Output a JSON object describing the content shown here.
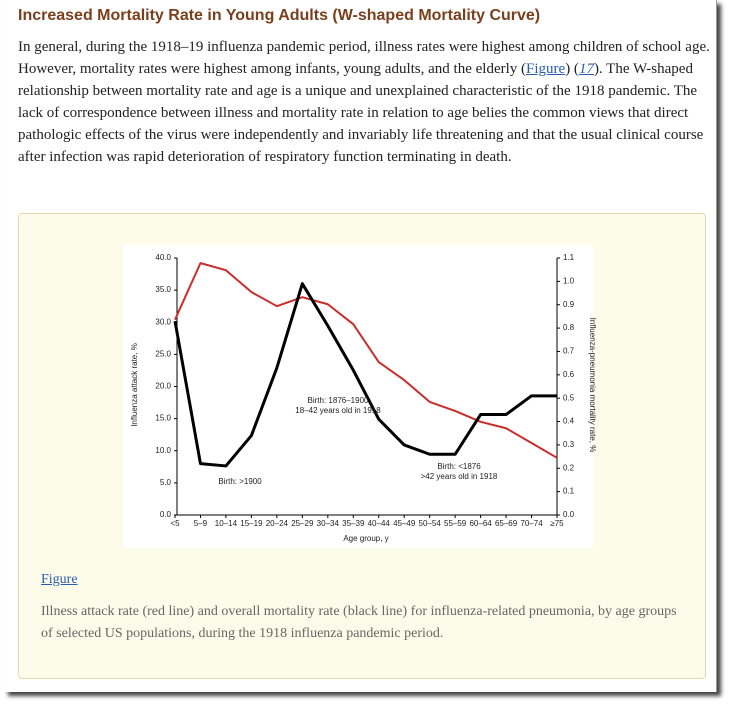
{
  "header": {
    "title": "Increased Mortality Rate in Young Adults (W-shaped Mortality Curve)"
  },
  "paragraph": [
    "In general, during the 1918–19 influenza pandemic period, illness rates were highest among children of school age. However, mortality rates were highest among infants, young adults, and the elderly (",
    "Figure",
    ") (",
    "17",
    "). The W-shaped relationship between mortality rate and age is a unique and unexplained characteristic of the 1918 pandemic. The lack of correspondence between illness and mortality rate in relation to age belies the common views that direct pathologic effects of the virus were independently and invariably life threatening and that the usual clinical course after infection was rapid deterioration of respiratory function terminating in death."
  ],
  "chart_data": {
    "type": "line",
    "x_label": "Age group, y",
    "y_label": "Influenza attack rate, %",
    "y2_label": "Influenza-pneumonia mortality rate, %",
    "categories": [
      "<5",
      "5–9",
      "10–14",
      "15–19",
      "20–24",
      "25–29",
      "30–34",
      "35–39",
      "40–44",
      "45–49",
      "50–54",
      "55–59",
      "60–64",
      "65–69",
      "70–74",
      "≥75"
    ],
    "series": [
      {
        "name": "Illness attack rate",
        "color": "#cc2b2b",
        "values": [
          30.4,
          39.2,
          38.1,
          34.7,
          32.5,
          33.9,
          32.8,
          29.7,
          23.8,
          21,
          17.6,
          16.2,
          14.5,
          13.5,
          11.2,
          8.9
        ]
      },
      {
        "name": "Mortality rate",
        "color": "#000000",
        "axis": "y2",
        "values": [
          0.83,
          0.22,
          0.21,
          0.34,
          0.63,
          0.99,
          0.81,
          0.62,
          0.41,
          0.3,
          0.26,
          0.26,
          0.43,
          0.43,
          0.51,
          0.51
        ]
      }
    ],
    "ylim": [
      0,
      40
    ],
    "yticks": [
      {
        "value": 0,
        "label": "0.0"
      },
      {
        "value": 5,
        "label": "5.0"
      },
      {
        "value": 10,
        "label": "10.0"
      },
      {
        "value": 15,
        "label": "15.0"
      },
      {
        "value": 20,
        "label": "20.0"
      },
      {
        "value": 25,
        "label": "25.0"
      },
      {
        "value": 30,
        "label": "30.0"
      },
      {
        "value": 35,
        "label": "35.0"
      },
      {
        "value": 40,
        "label": "40.0"
      }
    ],
    "y2lim": [
      0,
      1.1
    ],
    "y2ticks": [
      {
        "value": 0,
        "label": "0.0"
      },
      0.1,
      0.2,
      0.3,
      0.4,
      0.5,
      0.6,
      0.7,
      0.8,
      0.9,
      {
        "value": 1,
        "label": "1.0"
      },
      1.1
    ],
    "annotations": [
      "Birth: >1900",
      "Birth: 1876–1900",
      "18–42 years old in 1918",
      "Birth: <1876",
      ">42 years old in 1918"
    ]
  },
  "figure_link": "Figure",
  "caption": "Illness attack rate (red line) and overall mortality rate (black line) for influenza-related pneumonia, by age groups of selected US populations, during the 1918 influenza pandemic period."
}
